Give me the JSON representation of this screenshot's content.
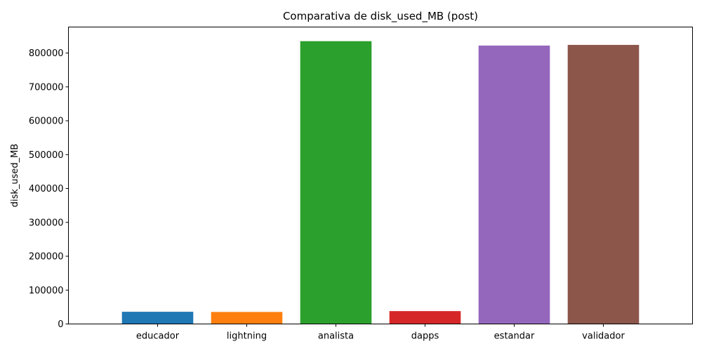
{
  "chart_data": {
    "type": "bar",
    "title": "Comparativa de disk_used_MB (post)",
    "xlabel": "",
    "ylabel": "disk_used_MB",
    "categories": [
      "educador",
      "lightning",
      "analista",
      "dapps",
      "estandar",
      "validador"
    ],
    "values": [
      36000,
      35500,
      835000,
      38000,
      822000,
      824000
    ],
    "colors": [
      "#1f77b4",
      "#ff7f0e",
      "#2ca02c",
      "#d62728",
      "#9467bd",
      "#8c564b"
    ],
    "ylim": [
      0,
      876750
    ],
    "yticks": [
      0,
      100000,
      200000,
      300000,
      400000,
      500000,
      600000,
      700000,
      800000
    ],
    "ytick_labels": [
      "0",
      "100000",
      "200000",
      "300000",
      "400000",
      "500000",
      "600000",
      "700000",
      "800000"
    ],
    "grid": false,
    "legend": "none"
  }
}
